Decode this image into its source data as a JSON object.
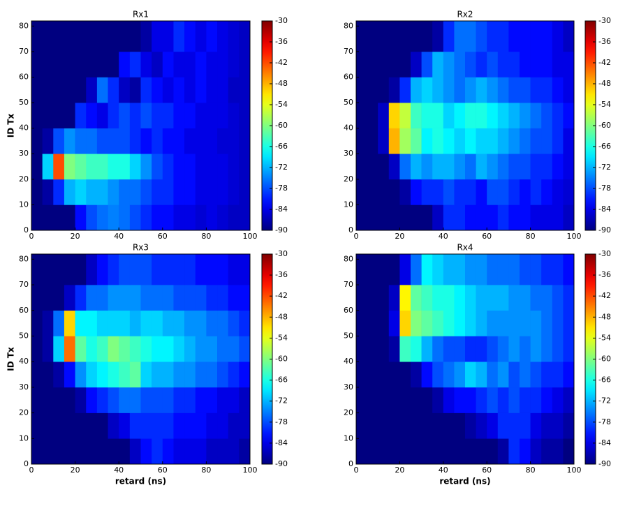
{
  "chart_data": [
    {
      "type": "heatmap",
      "title": "Rx1",
      "ylabel": "ID Tx",
      "colormap": "jet",
      "xlim": [
        0,
        100
      ],
      "xticks": [
        0,
        20,
        40,
        60,
        80,
        100
      ],
      "ylim": [
        0,
        82
      ],
      "yticks": [
        0,
        10,
        20,
        30,
        40,
        50,
        60,
        70,
        80
      ],
      "clim": [
        -90,
        -30
      ],
      "cticks": [
        -30,
        -36,
        -42,
        -48,
        -54,
        -60,
        -66,
        -72,
        -78,
        -84,
        -90
      ],
      "x_edges": [
        0,
        5,
        10,
        15,
        20,
        25,
        30,
        35,
        40,
        45,
        50,
        55,
        60,
        65,
        70,
        75,
        80,
        85,
        90,
        95,
        100
      ],
      "y_edges": [
        0,
        10,
        20,
        30,
        40,
        50,
        60,
        70,
        82
      ],
      "values": [
        [
          -90,
          -90,
          -90,
          -90,
          -82,
          -78,
          -76,
          -75,
          -76,
          -78,
          -80,
          -82,
          -82,
          -84,
          -84,
          -85,
          -84,
          -85,
          -86,
          -86
        ],
        [
          -90,
          -88,
          -80,
          -72,
          -70,
          -72,
          -72,
          -74,
          -76,
          -76,
          -78,
          -80,
          -80,
          -82,
          -82,
          -84,
          -84,
          -84,
          -85,
          -86
        ],
        [
          -90,
          -70,
          -42,
          -60,
          -62,
          -64,
          -64,
          -66,
          -66,
          -70,
          -74,
          -78,
          -80,
          -82,
          -82,
          -84,
          -84,
          -84,
          -85,
          -86
        ],
        [
          -90,
          -88,
          -78,
          -74,
          -76,
          -76,
          -78,
          -78,
          -78,
          -80,
          -82,
          -80,
          -82,
          -82,
          -84,
          -84,
          -84,
          -85,
          -85,
          -86
        ],
        [
          -90,
          -90,
          -90,
          -90,
          -80,
          -82,
          -84,
          -80,
          -78,
          -80,
          -78,
          -80,
          -80,
          -82,
          -82,
          -84,
          -84,
          -84,
          -85,
          -86
        ],
        [
          -90,
          -90,
          -90,
          -90,
          -90,
          -86,
          -76,
          -80,
          -86,
          -88,
          -80,
          -82,
          -84,
          -82,
          -84,
          -82,
          -84,
          -84,
          -86,
          -86
        ],
        [
          -90,
          -90,
          -90,
          -90,
          -90,
          -90,
          -90,
          -90,
          -82,
          -80,
          -84,
          -86,
          -82,
          -84,
          -84,
          -82,
          -84,
          -84,
          -85,
          -86
        ],
        [
          -90,
          -90,
          -90,
          -90,
          -90,
          -90,
          -90,
          -90,
          -90,
          -90,
          -88,
          -84,
          -84,
          -80,
          -82,
          -84,
          -82,
          -84,
          -85,
          -86
        ]
      ]
    },
    {
      "type": "heatmap",
      "title": "Rx2",
      "colormap": "jet",
      "xlim": [
        0,
        100
      ],
      "xticks": [
        0,
        20,
        40,
        60,
        80,
        100
      ],
      "ylim": [
        0,
        82
      ],
      "yticks": [
        0,
        10,
        20,
        30,
        40,
        50,
        60,
        70,
        80
      ],
      "clim": [
        -90,
        -30
      ],
      "cticks": [
        -30,
        -36,
        -42,
        -48,
        -54,
        -60,
        -66,
        -72,
        -78,
        -84,
        -90
      ],
      "x_edges": [
        0,
        5,
        10,
        15,
        20,
        25,
        30,
        35,
        40,
        45,
        50,
        55,
        60,
        65,
        70,
        75,
        80,
        85,
        90,
        95,
        100
      ],
      "y_edges": [
        0,
        10,
        20,
        30,
        40,
        50,
        60,
        70,
        82
      ],
      "values": [
        [
          -90,
          -90,
          -90,
          -90,
          -90,
          -90,
          -90,
          -86,
          -80,
          -80,
          -82,
          -82,
          -82,
          -80,
          -82,
          -82,
          -84,
          -84,
          -84,
          -86
        ],
        [
          -90,
          -90,
          -90,
          -90,
          -88,
          -82,
          -80,
          -80,
          -78,
          -80,
          -80,
          -82,
          -78,
          -78,
          -80,
          -82,
          -80,
          -82,
          -84,
          -85
        ],
        [
          -90,
          -90,
          -90,
          -86,
          -76,
          -72,
          -74,
          -72,
          -72,
          -74,
          -76,
          -72,
          -74,
          -76,
          -78,
          -78,
          -80,
          -80,
          -82,
          -84
        ],
        [
          -90,
          -90,
          -86,
          -48,
          -58,
          -62,
          -68,
          -66,
          -68,
          -70,
          -68,
          -70,
          -70,
          -72,
          -74,
          -76,
          -78,
          -78,
          -80,
          -84
        ],
        [
          -90,
          -90,
          -86,
          -50,
          -56,
          -64,
          -66,
          -66,
          -70,
          -68,
          -66,
          -66,
          -68,
          -70,
          -72,
          -74,
          -76,
          -78,
          -80,
          -82
        ],
        [
          -90,
          -90,
          -90,
          -88,
          -80,
          -72,
          -70,
          -72,
          -74,
          -76,
          -74,
          -72,
          -74,
          -76,
          -78,
          -78,
          -80,
          -80,
          -82,
          -84
        ],
        [
          -90,
          -90,
          -90,
          -90,
          -90,
          -86,
          -78,
          -72,
          -74,
          -76,
          -78,
          -80,
          -78,
          -80,
          -80,
          -82,
          -82,
          -82,
          -84,
          -84
        ],
        [
          -90,
          -90,
          -90,
          -90,
          -90,
          -90,
          -90,
          -88,
          -80,
          -76,
          -76,
          -78,
          -80,
          -80,
          -82,
          -82,
          -82,
          -82,
          -84,
          -86
        ]
      ]
    },
    {
      "type": "heatmap",
      "title": "Rx3",
      "xlabel": "retard (ns)",
      "ylabel": "ID Tx",
      "colormap": "jet",
      "xlim": [
        0,
        100
      ],
      "xticks": [
        0,
        20,
        40,
        60,
        80,
        100
      ],
      "ylim": [
        0,
        82
      ],
      "yticks": [
        0,
        10,
        20,
        30,
        40,
        50,
        60,
        70,
        80
      ],
      "clim": [
        -90,
        -30
      ],
      "cticks": [
        -30,
        -36,
        -42,
        -48,
        -54,
        -60,
        -66,
        -72,
        -78,
        -84,
        -90
      ],
      "x_edges": [
        0,
        5,
        10,
        15,
        20,
        25,
        30,
        35,
        40,
        45,
        50,
        55,
        60,
        65,
        70,
        75,
        80,
        85,
        90,
        95,
        100
      ],
      "y_edges": [
        0,
        10,
        20,
        30,
        40,
        50,
        60,
        70,
        82
      ],
      "values": [
        [
          -90,
          -90,
          -90,
          -90,
          -90,
          -90,
          -90,
          -90,
          -90,
          -86,
          -82,
          -80,
          -82,
          -84,
          -84,
          -84,
          -86,
          -86,
          -86,
          -88
        ],
        [
          -90,
          -90,
          -90,
          -90,
          -90,
          -90,
          -90,
          -86,
          -84,
          -80,
          -80,
          -80,
          -80,
          -82,
          -82,
          -82,
          -84,
          -84,
          -86,
          -86
        ],
        [
          -90,
          -90,
          -90,
          -90,
          -88,
          -82,
          -80,
          -78,
          -76,
          -76,
          -78,
          -78,
          -78,
          -80,
          -80,
          -82,
          -82,
          -84,
          -84,
          -86
        ],
        [
          -90,
          -90,
          -88,
          -82,
          -74,
          -70,
          -68,
          -66,
          -64,
          -62,
          -70,
          -72,
          -72,
          -74,
          -74,
          -76,
          -76,
          -78,
          -80,
          -82
        ],
        [
          -90,
          -88,
          -70,
          -44,
          -62,
          -66,
          -64,
          -60,
          -62,
          -64,
          -66,
          -68,
          -68,
          -70,
          -72,
          -74,
          -74,
          -76,
          -76,
          -78
        ],
        [
          -90,
          -88,
          -76,
          -50,
          -68,
          -68,
          -70,
          -70,
          -70,
          -72,
          -70,
          -70,
          -72,
          -72,
          -74,
          -74,
          -76,
          -76,
          -78,
          -80
        ],
        [
          -90,
          -90,
          -90,
          -86,
          -80,
          -76,
          -76,
          -74,
          -74,
          -74,
          -76,
          -76,
          -76,
          -78,
          -78,
          -78,
          -80,
          -80,
          -82,
          -82
        ],
        [
          -90,
          -90,
          -90,
          -90,
          -90,
          -86,
          -82,
          -80,
          -78,
          -78,
          -78,
          -80,
          -80,
          -80,
          -80,
          -82,
          -82,
          -82,
          -84,
          -84
        ]
      ]
    },
    {
      "type": "heatmap",
      "title": "Rx4",
      "xlabel": "retard (ns)",
      "colormap": "jet",
      "xlim": [
        0,
        100
      ],
      "xticks": [
        0,
        20,
        40,
        60,
        80,
        100
      ],
      "ylim": [
        0,
        82
      ],
      "yticks": [
        0,
        10,
        20,
        30,
        40,
        50,
        60,
        70,
        80
      ],
      "clim": [
        -90,
        -30
      ],
      "cticks": [
        -30,
        -36,
        -42,
        -48,
        -54,
        -60,
        -66,
        -72,
        -78,
        -84,
        -90
      ],
      "x_edges": [
        0,
        5,
        10,
        15,
        20,
        25,
        30,
        35,
        40,
        45,
        50,
        55,
        60,
        65,
        70,
        75,
        80,
        85,
        90,
        95,
        100
      ],
      "y_edges": [
        0,
        10,
        20,
        30,
        40,
        50,
        60,
        70,
        82
      ],
      "values": [
        [
          -90,
          -90,
          -90,
          -90,
          -90,
          -90,
          -90,
          -90,
          -90,
          -90,
          -90,
          -90,
          -90,
          -88,
          -80,
          -82,
          -86,
          -88,
          -88,
          -90
        ],
        [
          -90,
          -90,
          -90,
          -90,
          -90,
          -90,
          -90,
          -90,
          -90,
          -90,
          -88,
          -86,
          -84,
          -80,
          -80,
          -80,
          -84,
          -86,
          -86,
          -88
        ],
        [
          -90,
          -90,
          -90,
          -90,
          -90,
          -90,
          -90,
          -88,
          -84,
          -82,
          -82,
          -80,
          -78,
          -80,
          -78,
          -80,
          -80,
          -82,
          -84,
          -86
        ],
        [
          -90,
          -90,
          -90,
          -90,
          -90,
          -88,
          -82,
          -78,
          -76,
          -74,
          -70,
          -72,
          -76,
          -74,
          -78,
          -76,
          -78,
          -80,
          -80,
          -82
        ],
        [
          -90,
          -90,
          -90,
          -88,
          -64,
          -66,
          -72,
          -76,
          -78,
          -78,
          -80,
          -80,
          -78,
          -76,
          -74,
          -76,
          -74,
          -76,
          -78,
          -80
        ],
        [
          -90,
          -90,
          -90,
          -84,
          -50,
          -60,
          -62,
          -64,
          -66,
          -68,
          -70,
          -72,
          -74,
          -74,
          -74,
          -74,
          -74,
          -76,
          -78,
          -80
        ],
        [
          -90,
          -90,
          -90,
          -86,
          -52,
          -62,
          -64,
          -66,
          -66,
          -68,
          -70,
          -72,
          -72,
          -72,
          -74,
          -74,
          -76,
          -76,
          -78,
          -80
        ],
        [
          -90,
          -90,
          -90,
          -90,
          -84,
          -76,
          -68,
          -70,
          -72,
          -72,
          -74,
          -74,
          -76,
          -76,
          -76,
          -78,
          -78,
          -80,
          -80,
          -82
        ]
      ]
    }
  ]
}
